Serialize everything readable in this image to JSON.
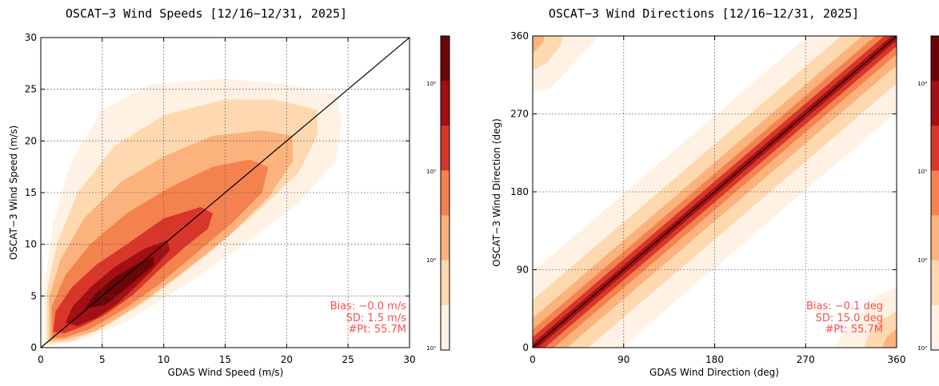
{
  "colors": {
    "background": "#ffffff",
    "axis": "#000000",
    "grid": "#555555",
    "stats_text": "#ff4d4d",
    "levels": [
      "#fff1e4",
      "#fed9b0",
      "#fbb27c",
      "#f4824e",
      "#d8362a",
      "#a30f12",
      "#6b0508"
    ]
  },
  "colorbar_labels": [
    "10⁶",
    "10⁵",
    "10⁴",
    "10³"
  ],
  "chart_data": [
    {
      "type": "heatmap",
      "title": "OSCAT−3 Wind Speeds [12/16−12/31, 2025]",
      "xlabel": "GDAS Wind Speed (m/s)",
      "ylabel": "OSCAT−3 Wind Speed (m/s)",
      "xlim": [
        0,
        30
      ],
      "ylim": [
        0,
        30
      ],
      "xticks": [
        "0",
        "5",
        "10",
        "15",
        "20",
        "25",
        "30"
      ],
      "yticks": [
        "0",
        "5",
        "10",
        "15",
        "20",
        "25",
        "30"
      ],
      "grid": true,
      "diagonal_line": true,
      "stats": [
        "Bias: −0.0 m/s",
        "SD:  1.5 m/s",
        "#Pt:  55.7M"
      ],
      "density_contours": [
        {
          "level": 1,
          "points": [
            [
              0.3,
              0.2
            ],
            [
              0.3,
              6
            ],
            [
              1,
              12
            ],
            [
              2.5,
              18
            ],
            [
              5,
              23
            ],
            [
              9,
              25.5
            ],
            [
              15,
              26
            ],
            [
              20,
              25.5
            ],
            [
              24,
              24.5
            ],
            [
              24.5,
              22
            ],
            [
              24,
              18
            ],
            [
              21,
              14
            ],
            [
              16,
              9.5
            ],
            [
              11,
              5.5
            ],
            [
              7,
              2.5
            ],
            [
              3.5,
              0.8
            ],
            [
              1,
              0.2
            ]
          ]
        },
        {
          "level": 2,
          "points": [
            [
              0.5,
              0.4
            ],
            [
              0.5,
              5.5
            ],
            [
              1.3,
              10
            ],
            [
              3,
              15
            ],
            [
              6,
              19.5
            ],
            [
              10,
              22.5
            ],
            [
              15,
              24
            ],
            [
              19,
              24
            ],
            [
              22.5,
              23
            ],
            [
              22.5,
              20.5
            ],
            [
              21,
              17
            ],
            [
              17.5,
              13
            ],
            [
              13,
              8.5
            ],
            [
              9,
              4.8
            ],
            [
              5.5,
              2.2
            ],
            [
              2.5,
              0.6
            ]
          ]
        },
        {
          "level": 3,
          "points": [
            [
              0.7,
              0.6
            ],
            [
              0.7,
              5
            ],
            [
              1.6,
              8.5
            ],
            [
              3.5,
              12.5
            ],
            [
              6.5,
              16
            ],
            [
              10,
              18.5
            ],
            [
              14,
              20.5
            ],
            [
              18,
              21
            ],
            [
              20.5,
              20.5
            ],
            [
              20.5,
              18
            ],
            [
              18.5,
              14.5
            ],
            [
              15,
              10.5
            ],
            [
              11,
              6.8
            ],
            [
              7.5,
              3.8
            ],
            [
              4.5,
              1.6
            ],
            [
              2,
              0.8
            ]
          ]
        },
        {
          "level": 4,
          "points": [
            [
              0.9,
              0.9
            ],
            [
              0.9,
              4
            ],
            [
              2,
              7
            ],
            [
              4,
              10
            ],
            [
              7,
              13
            ],
            [
              10.5,
              15.5
            ],
            [
              14,
              17.5
            ],
            [
              17,
              18.2
            ],
            [
              18.5,
              17.5
            ],
            [
              18,
              15
            ],
            [
              15.5,
              12
            ],
            [
              12.5,
              9
            ],
            [
              9.5,
              6
            ],
            [
              6.5,
              3.5
            ],
            [
              4,
              1.8
            ],
            [
              2,
              1
            ]
          ]
        },
        {
          "level": 5,
          "points": [
            [
              1,
              1.5
            ],
            [
              1.2,
              3.5
            ],
            [
              2.5,
              5.8
            ],
            [
              4.5,
              8
            ],
            [
              7,
              10
            ],
            [
              10,
              12.5
            ],
            [
              13,
              13.6
            ],
            [
              14,
              13
            ],
            [
              13.6,
              11.5
            ],
            [
              11.8,
              9.8
            ],
            [
              9.7,
              7.6
            ],
            [
              7.5,
              5.1
            ],
            [
              5.4,
              3.3
            ],
            [
              3.5,
              2.1
            ],
            [
              2,
              1.4
            ]
          ]
        },
        {
          "level": 6,
          "points": [
            [
              2,
              2.4
            ],
            [
              2.6,
              4
            ],
            [
              4.2,
              6
            ],
            [
              6,
              7.8
            ],
            [
              8.5,
              9.6
            ],
            [
              10.3,
              10.4
            ],
            [
              10.5,
              9.4
            ],
            [
              9.3,
              7.8
            ],
            [
              7.8,
              6
            ],
            [
              6.2,
              4.2
            ],
            [
              4.6,
              2.9
            ],
            [
              3,
              2.1
            ]
          ]
        },
        {
          "level": 7,
          "points": [
            [
              3.6,
              3.8
            ],
            [
              4.4,
              5.2
            ],
            [
              6,
              6.8
            ],
            [
              8,
              8.2
            ],
            [
              9.2,
              8.8
            ],
            [
              9.2,
              8
            ],
            [
              8,
              6.8
            ],
            [
              6.6,
              5.4
            ],
            [
              5.2,
              4.1
            ]
          ]
        }
      ]
    },
    {
      "type": "heatmap",
      "title": "OSCAT−3 Wind Directions [12/16−12/31, 2025]",
      "xlabel": "GDAS Wind Direction (deg)",
      "ylabel": "OSCAT−3 Wind Direction (deg)",
      "xlim": [
        0,
        360
      ],
      "ylim": [
        0,
        360
      ],
      "xticks": [
        "0",
        "90",
        "180",
        "270",
        "360"
      ],
      "yticks": [
        "0",
        "90",
        "180",
        "270",
        "360"
      ],
      "grid": true,
      "diagonal_line": true,
      "fit_line_dashed": true,
      "stats": [
        "Bias: −0.1 deg",
        "SD: 15.0 deg",
        "#Pt:  55.7M"
      ],
      "density_bands": [
        {
          "level": 1,
          "half_width": 88
        },
        {
          "level": 2,
          "half_width": 55
        },
        {
          "level": 3,
          "half_width": 34
        },
        {
          "level": 4,
          "half_width": 21
        },
        {
          "level": 5,
          "half_width": 12
        },
        {
          "level": 6,
          "half_width": 5
        }
      ],
      "corner_blobs": [
        {
          "level": 1,
          "points": [
            [
              0,
              360
            ],
            [
              0,
              295
            ],
            [
              18,
              300
            ],
            [
              38,
              325
            ],
            [
              55,
              346
            ],
            [
              65,
              360
            ]
          ]
        },
        {
          "level": 2,
          "points": [
            [
              0,
              360
            ],
            [
              0,
              320
            ],
            [
              15,
              330
            ],
            [
              28,
              350
            ],
            [
              30,
              360
            ]
          ]
        },
        {
          "level": 3,
          "points": [
            [
              0,
              360
            ],
            [
              0,
              340
            ],
            [
              10,
              352
            ],
            [
              12,
              360
            ]
          ]
        },
        {
          "level": 1,
          "points": [
            [
              360,
              0
            ],
            [
              360,
              70
            ],
            [
              340,
              60
            ],
            [
              322,
              35
            ],
            [
              305,
              12
            ],
            [
              298,
              0
            ]
          ]
        },
        {
          "level": 2,
          "points": [
            [
              360,
              0
            ],
            [
              360,
              42
            ],
            [
              345,
              32
            ],
            [
              332,
              15
            ],
            [
              328,
              0
            ]
          ]
        },
        {
          "level": 3,
          "points": [
            [
              360,
              0
            ],
            [
              360,
              22
            ],
            [
              350,
              12
            ],
            [
              346,
              0
            ]
          ]
        }
      ]
    }
  ]
}
